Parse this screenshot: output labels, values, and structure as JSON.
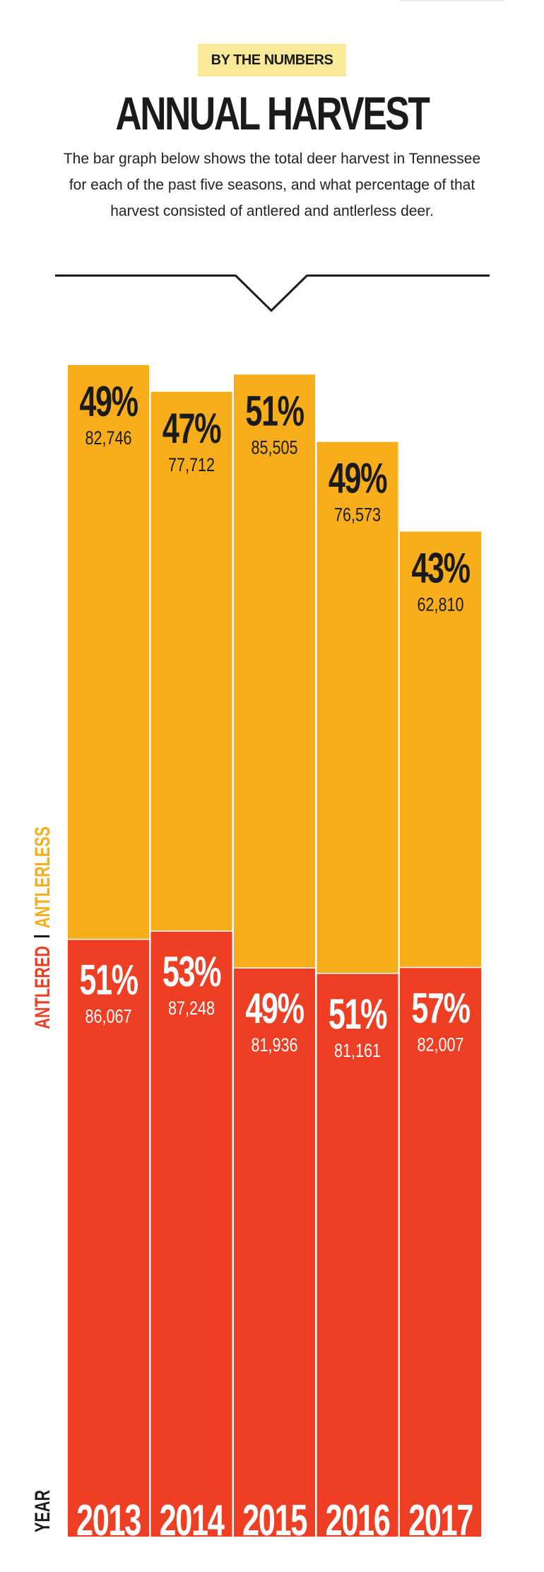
{
  "header": {
    "badge": "BY THE NUMBERS",
    "title": "ANNUAL HARVEST",
    "intro": "The bar graph below shows the total deer harvest in Tennessee for each of the past five seasons, and what percentage of that harvest consisted of antlered and antlerless deer."
  },
  "colors": {
    "antlered": "#ee3e24",
    "antlerless": "#f8ad1b",
    "ink": "#1b1b1b",
    "badge": "#fbe99a"
  },
  "chart_data": {
    "type": "bar",
    "stacked": true,
    "categories": [
      "2013",
      "2014",
      "2015",
      "2016",
      "2017"
    ],
    "xlabel": "YEAR",
    "series": [
      {
        "name": "ANTLERED",
        "values": [
          86067,
          87248,
          81936,
          81161,
          82007
        ],
        "percent_labels": [
          "51%",
          "53%",
          "49%",
          "51%",
          "57%"
        ],
        "value_labels": [
          "86,067",
          "87,248",
          "81,936",
          "81,161",
          "82,007"
        ]
      },
      {
        "name": "ANTLERLESS",
        "values": [
          82746,
          77712,
          85505,
          76573,
          62810
        ],
        "percent_labels": [
          "49%",
          "47%",
          "51%",
          "49%",
          "43%"
        ],
        "value_labels": [
          "82,746",
          "77,712",
          "85,505",
          "76,573",
          "62,810"
        ]
      }
    ],
    "legend": [
      "ANTLERED",
      "ANTLERLESS"
    ],
    "grid": false
  }
}
